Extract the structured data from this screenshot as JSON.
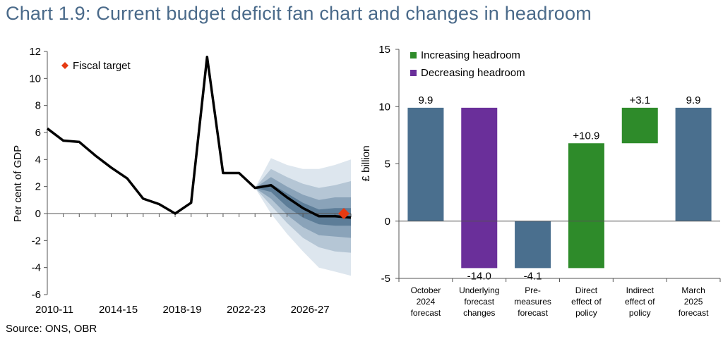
{
  "title": "Chart 1.9: Current budget deficit fan chart and changes in headroom",
  "source": "Source: ONS, OBR",
  "colors": {
    "title": "#4a6a8a",
    "line": "#000000",
    "fan_outer": "#dde6ee",
    "fan_mid": "#b5c6d5",
    "fan_inner": "#8aa3b9",
    "fan_core": "#5d7d98",
    "fiscal_target": "#e63a12",
    "bar_blue": "#4a6f8e",
    "bar_green": "#2e8b2a",
    "bar_purple": "#6a2f9a"
  },
  "chart_data": [
    {
      "type": "line",
      "title": "",
      "xlabel": "",
      "ylabel": "Per cent of GDP",
      "ylim": [
        -6,
        12
      ],
      "yticks": [
        -6,
        -4,
        -2,
        0,
        2,
        4,
        6,
        8,
        10,
        12
      ],
      "ytick_labels": [
        "-6",
        "-4",
        "-2",
        "0",
        "2",
        "4",
        "6",
        "8",
        "10",
        "12"
      ],
      "xlim": [
        2010,
        2029
      ],
      "xticks": [
        2010,
        2014,
        2018,
        2022,
        2026
      ],
      "xtick_labels": [
        "2010-11",
        "2014-15",
        "2018-19",
        "2022-23",
        "2026-27"
      ],
      "grid": false,
      "legend_position": "top-left",
      "series": [
        {
          "type": "line",
          "x": [
            2010,
            2011,
            2012,
            2013,
            2014,
            2015,
            2016,
            2017,
            2018,
            2019,
            2020,
            2021,
            2022,
            2023,
            2024,
            2025,
            2026,
            2027,
            2028,
            2029
          ],
          "y": [
            6.3,
            5.4,
            5.3,
            4.3,
            3.4,
            2.6,
            1.1,
            0.7,
            0.0,
            0.8,
            11.6,
            3.0,
            3.0,
            1.9,
            2.1,
            1.2,
            0.4,
            -0.2,
            -0.2,
            -0.3
          ]
        },
        {
          "name": "Fiscal target",
          "type": "scatter",
          "x": [
            2029
          ],
          "y": [
            0
          ]
        }
      ],
      "fan": {
        "x": [
          2023,
          2024,
          2025,
          2026,
          2027,
          2028,
          2029
        ],
        "bands": [
          {
            "lower": [
              1.9,
              0.0,
              -1.5,
              -2.8,
              -4.0,
              -4.3,
              -4.6
            ],
            "upper": [
              1.9,
              4.1,
              3.6,
              3.3,
              3.3,
              3.6,
              4.0
            ]
          },
          {
            "lower": [
              1.9,
              0.6,
              -0.7,
              -1.8,
              -2.5,
              -2.8,
              -2.9
            ],
            "upper": [
              1.9,
              3.3,
              2.7,
              2.2,
              1.9,
              2.1,
              2.4
            ]
          },
          {
            "lower": [
              1.9,
              1.1,
              -0.1,
              -1.0,
              -1.6,
              -1.7,
              -1.8
            ],
            "upper": [
              1.9,
              2.7,
              2.0,
              1.4,
              1.0,
              1.2,
              1.2
            ]
          },
          {
            "lower": [
              1.9,
              1.6,
              0.5,
              -0.3,
              -0.8,
              -0.9,
              -0.9
            ],
            "upper": [
              1.9,
              2.2,
              1.5,
              0.8,
              0.3,
              0.4,
              0.4
            ]
          }
        ]
      }
    },
    {
      "type": "bar",
      "subtype": "waterfall",
      "title": "",
      "xlabel": "",
      "ylabel": "£ billion",
      "ylim": [
        -5,
        15
      ],
      "yticks": [
        -5,
        0,
        5,
        10,
        15
      ],
      "ytick_labels": [
        "-5",
        "0",
        "5",
        "10",
        "15"
      ],
      "grid": false,
      "legend_position": "top-left",
      "legend": [
        {
          "name": "Increasing headroom",
          "color": "#2e8b2a"
        },
        {
          "name": "Decreasing headroom",
          "color": "#6a2f9a"
        }
      ],
      "categories": [
        [
          "October",
          "2024",
          "forecast"
        ],
        [
          "Underlying",
          "forecast",
          "changes"
        ],
        [
          "Pre-",
          "measures",
          "forecast"
        ],
        [
          "Direct",
          "effect of",
          "policy"
        ],
        [
          "Indirect",
          "effect of",
          "policy"
        ],
        [
          "March",
          "2025",
          "forecast"
        ]
      ],
      "bars": [
        {
          "bottom": 0,
          "top": 9.9,
          "kind": "total",
          "label": "9.9",
          "label_position": "above"
        },
        {
          "bottom": -4.1,
          "top": 9.9,
          "kind": "decrease",
          "label": "-14.0",
          "label_position": "below"
        },
        {
          "bottom": -4.1,
          "top": 0,
          "kind": "total",
          "label": "-4.1",
          "label_position": "below"
        },
        {
          "bottom": -4.1,
          "top": 6.8,
          "kind": "increase",
          "label": "+10.9",
          "label_position": "above"
        },
        {
          "bottom": 6.8,
          "top": 9.9,
          "kind": "increase",
          "label": "+3.1",
          "label_position": "above"
        },
        {
          "bottom": 0,
          "top": 9.9,
          "kind": "total",
          "label": "9.9",
          "label_position": "above"
        }
      ]
    }
  ]
}
